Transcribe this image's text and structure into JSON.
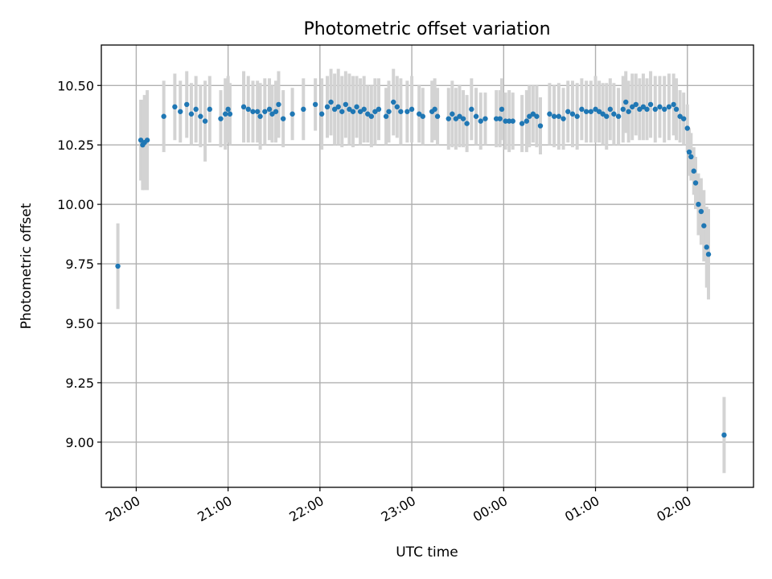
{
  "chart_data": {
    "type": "scatter",
    "title": "Photometric offset variation",
    "xlabel": "UTC time",
    "ylabel": "Photometric offset",
    "x_unit": "UTC hours (continuing past midnight)",
    "xlim": [
      19.62,
      26.72
    ],
    "ylim": [
      8.81,
      10.67
    ],
    "xticks": [
      20,
      21,
      22,
      23,
      24,
      25,
      26
    ],
    "xtick_labels": [
      "20:00",
      "21:00",
      "22:00",
      "23:00",
      "00:00",
      "01:00",
      "02:00"
    ],
    "yticks": [
      9.0,
      9.25,
      9.5,
      9.75,
      10.0,
      10.25,
      10.5
    ],
    "ytick_labels": [
      "9.00",
      "9.25",
      "9.50",
      "9.75",
      "10.00",
      "10.25",
      "10.50"
    ],
    "grid": true,
    "point_color": "#1f77b4",
    "errorbar_color": "#d3d3d3",
    "series": [
      {
        "points": [
          [
            19.8,
            9.74,
            0.18
          ],
          [
            20.05,
            10.27,
            0.17
          ],
          [
            20.07,
            10.25,
            0.19
          ],
          [
            20.09,
            10.26,
            0.2
          ],
          [
            20.12,
            10.27,
            0.21
          ],
          [
            20.3,
            10.37,
            0.15
          ],
          [
            20.42,
            10.41,
            0.14
          ],
          [
            20.48,
            10.39,
            0.13
          ],
          [
            20.55,
            10.42,
            0.14
          ],
          [
            20.6,
            10.38,
            0.13
          ],
          [
            20.65,
            10.4,
            0.14
          ],
          [
            20.7,
            10.37,
            0.13
          ],
          [
            20.75,
            10.35,
            0.17
          ],
          [
            20.8,
            10.4,
            0.14
          ],
          [
            20.92,
            10.36,
            0.12
          ],
          [
            20.97,
            10.38,
            0.15
          ],
          [
            21.0,
            10.4,
            0.14
          ],
          [
            21.02,
            10.38,
            0.13
          ],
          [
            21.17,
            10.41,
            0.15
          ],
          [
            21.22,
            10.4,
            0.14
          ],
          [
            21.27,
            10.39,
            0.13
          ],
          [
            21.32,
            10.39,
            0.13
          ],
          [
            21.35,
            10.37,
            0.14
          ],
          [
            21.4,
            10.39,
            0.14
          ],
          [
            21.45,
            10.4,
            0.13
          ],
          [
            21.48,
            10.38,
            0.12
          ],
          [
            21.52,
            10.39,
            0.13
          ],
          [
            21.55,
            10.42,
            0.14
          ],
          [
            21.6,
            10.36,
            0.12
          ],
          [
            21.7,
            10.38,
            0.11
          ],
          [
            21.82,
            10.4,
            0.13
          ],
          [
            21.95,
            10.42,
            0.11
          ],
          [
            22.02,
            10.38,
            0.15
          ],
          [
            22.08,
            10.41,
            0.13
          ],
          [
            22.12,
            10.43,
            0.14
          ],
          [
            22.16,
            10.4,
            0.15
          ],
          [
            22.2,
            10.41,
            0.16
          ],
          [
            22.24,
            10.39,
            0.15
          ],
          [
            22.28,
            10.42,
            0.14
          ],
          [
            22.32,
            10.4,
            0.15
          ],
          [
            22.36,
            10.39,
            0.15
          ],
          [
            22.4,
            10.41,
            0.13
          ],
          [
            22.44,
            10.39,
            0.14
          ],
          [
            22.48,
            10.4,
            0.14
          ],
          [
            22.52,
            10.38,
            0.12
          ],
          [
            22.56,
            10.37,
            0.13
          ],
          [
            22.6,
            10.39,
            0.14
          ],
          [
            22.64,
            10.4,
            0.13
          ],
          [
            22.72,
            10.37,
            0.12
          ],
          [
            22.75,
            10.39,
            0.13
          ],
          [
            22.8,
            10.43,
            0.14
          ],
          [
            22.84,
            10.41,
            0.13
          ],
          [
            22.88,
            10.39,
            0.14
          ],
          [
            22.95,
            10.39,
            0.13
          ],
          [
            23.0,
            10.4,
            0.14
          ],
          [
            23.08,
            10.38,
            0.12
          ],
          [
            23.12,
            10.37,
            0.12
          ],
          [
            23.22,
            10.39,
            0.13
          ],
          [
            23.25,
            10.4,
            0.13
          ],
          [
            23.28,
            10.37,
            0.12
          ],
          [
            23.4,
            10.36,
            0.13
          ],
          [
            23.44,
            10.38,
            0.14
          ],
          [
            23.48,
            10.36,
            0.13
          ],
          [
            23.52,
            10.37,
            0.13
          ],
          [
            23.56,
            10.36,
            0.12
          ],
          [
            23.6,
            10.34,
            0.12
          ],
          [
            23.65,
            10.4,
            0.13
          ],
          [
            23.7,
            10.37,
            0.12
          ],
          [
            23.75,
            10.35,
            0.12
          ],
          [
            23.8,
            10.36,
            0.11
          ],
          [
            23.92,
            10.36,
            0.12
          ],
          [
            23.96,
            10.36,
            0.12
          ],
          [
            23.98,
            10.4,
            0.13
          ],
          [
            24.02,
            10.35,
            0.12
          ],
          [
            24.06,
            10.35,
            0.13
          ],
          [
            24.1,
            10.35,
            0.12
          ],
          [
            24.2,
            10.34,
            0.12
          ],
          [
            24.25,
            10.35,
            0.13
          ],
          [
            24.28,
            10.37,
            0.13
          ],
          [
            24.32,
            10.38,
            0.12
          ],
          [
            24.36,
            10.37,
            0.13
          ],
          [
            24.4,
            10.33,
            0.12
          ],
          [
            24.5,
            10.38,
            0.13
          ],
          [
            24.55,
            10.37,
            0.13
          ],
          [
            24.6,
            10.37,
            0.14
          ],
          [
            24.65,
            10.36,
            0.13
          ],
          [
            24.7,
            10.39,
            0.13
          ],
          [
            24.75,
            10.38,
            0.14
          ],
          [
            24.8,
            10.37,
            0.14
          ],
          [
            24.85,
            10.4,
            0.13
          ],
          [
            24.9,
            10.39,
            0.13
          ],
          [
            24.95,
            10.39,
            0.13
          ],
          [
            25.0,
            10.4,
            0.14
          ],
          [
            25.04,
            10.39,
            0.13
          ],
          [
            25.08,
            10.38,
            0.13
          ],
          [
            25.12,
            10.37,
            0.14
          ],
          [
            25.16,
            10.4,
            0.13
          ],
          [
            25.2,
            10.38,
            0.13
          ],
          [
            25.25,
            10.37,
            0.12
          ],
          [
            25.3,
            10.4,
            0.14
          ],
          [
            25.33,
            10.43,
            0.13
          ],
          [
            25.36,
            10.39,
            0.13
          ],
          [
            25.4,
            10.41,
            0.14
          ],
          [
            25.44,
            10.42,
            0.13
          ],
          [
            25.48,
            10.4,
            0.13
          ],
          [
            25.52,
            10.41,
            0.14
          ],
          [
            25.56,
            10.4,
            0.13
          ],
          [
            25.6,
            10.42,
            0.14
          ],
          [
            25.65,
            10.4,
            0.14
          ],
          [
            25.7,
            10.41,
            0.13
          ],
          [
            25.75,
            10.4,
            0.14
          ],
          [
            25.8,
            10.41,
            0.14
          ],
          [
            25.85,
            10.42,
            0.13
          ],
          [
            25.88,
            10.4,
            0.13
          ],
          [
            25.92,
            10.37,
            0.11
          ],
          [
            25.96,
            10.36,
            0.11
          ],
          [
            26.0,
            10.32,
            0.1
          ],
          [
            26.02,
            10.22,
            0.1
          ],
          [
            26.04,
            10.2,
            0.1
          ],
          [
            26.07,
            10.14,
            0.1
          ],
          [
            26.09,
            10.09,
            0.11
          ],
          [
            26.12,
            10.0,
            0.13
          ],
          [
            26.15,
            9.97,
            0.14
          ],
          [
            26.18,
            9.91,
            0.15
          ],
          [
            26.21,
            9.82,
            0.17
          ],
          [
            26.23,
            9.79,
            0.19
          ],
          [
            26.4,
            9.03,
            0.16
          ]
        ]
      }
    ]
  }
}
